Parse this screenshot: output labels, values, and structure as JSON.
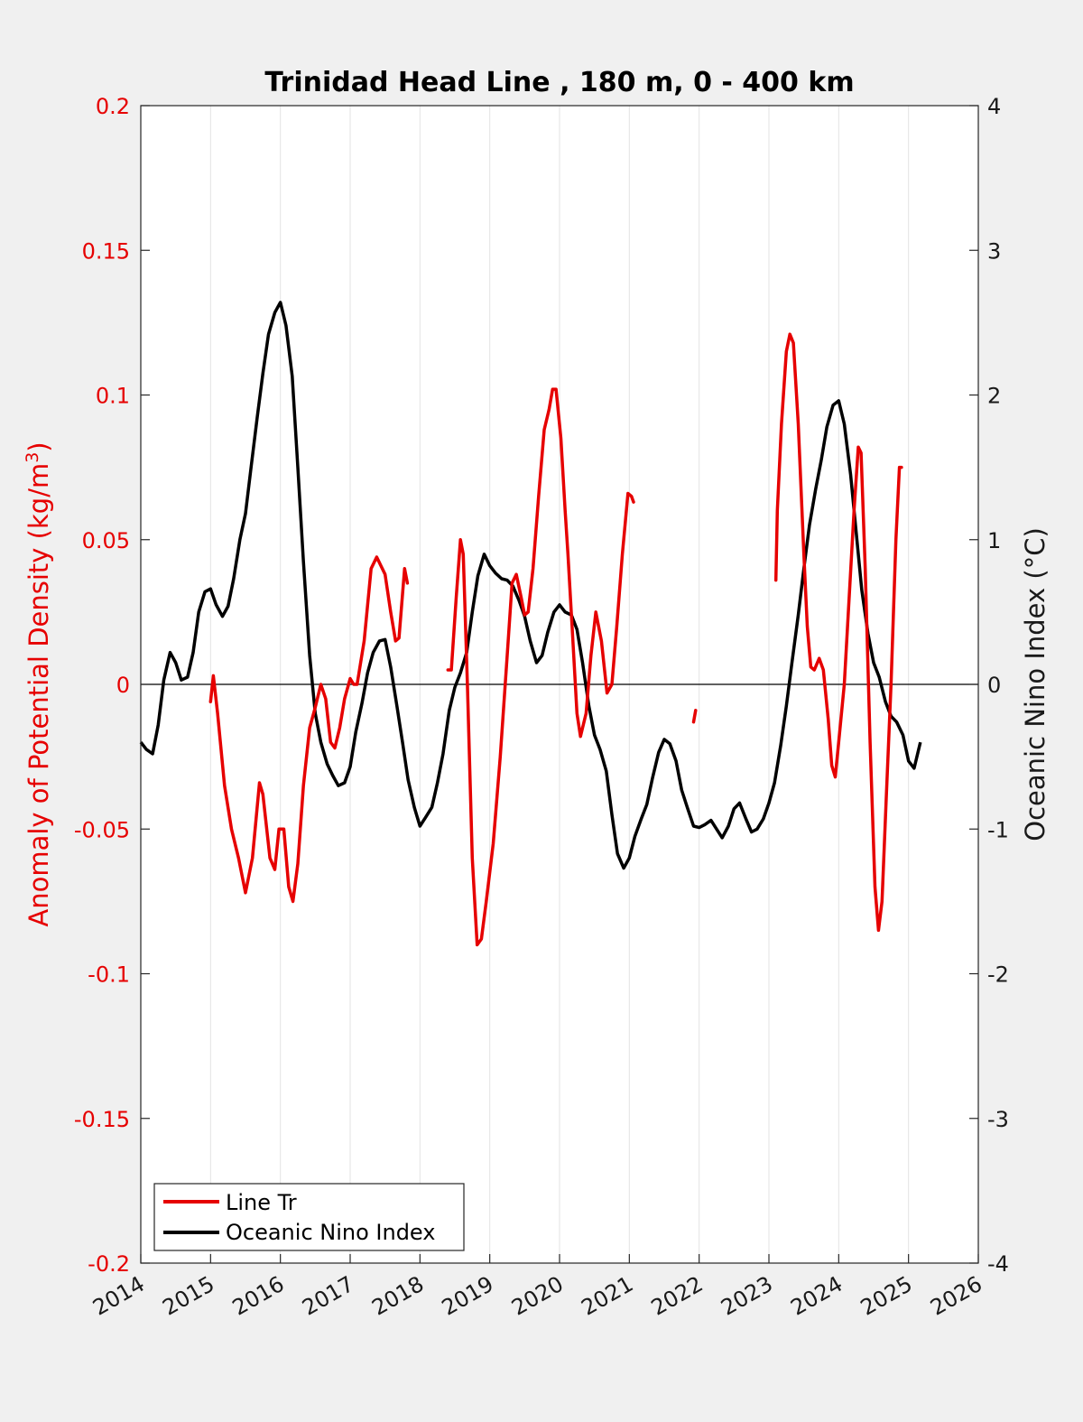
{
  "chart_data": {
    "type": "line",
    "title": "Trinidad Head Line , 180 m, 0 - 400 km",
    "ylabel_left": "Anomaly of Potential Density (kg/m",
    "ylabel_left_sup": "3",
    "ylabel_left_close": ")",
    "ylabel_right": "Oceanic Nino Index (°C)",
    "xlabel": "",
    "xlim": [
      2014,
      2026
    ],
    "ylim_left": [
      -0.2,
      0.2
    ],
    "ylim_right": [
      -4,
      4
    ],
    "x_ticks": [
      "2014",
      "2015",
      "2016",
      "2017",
      "2018",
      "2019",
      "2020",
      "2021",
      "2022",
      "2023",
      "2024",
      "2025",
      "2026"
    ],
    "y_left_ticks": [
      "0.2",
      "0.15",
      "0.1",
      "0.05",
      "0",
      "-0.05",
      "-0.1",
      "-0.15",
      "-0.2"
    ],
    "y_right_ticks": [
      "4",
      "3",
      "2",
      "1",
      "0",
      "-1",
      "-2",
      "-3",
      "-4"
    ],
    "grid": "vertical",
    "legend_position": "bottom-left",
    "colors": {
      "line_tr": "#e60000",
      "oni": "#000000"
    },
    "series": [
      {
        "name": "Line Tr",
        "axis": "left",
        "segments": [
          [
            [
              2015.0,
              -0.006
            ],
            [
              2015.04,
              0.003
            ],
            [
              2015.1,
              -0.01
            ],
            [
              2015.2,
              -0.035
            ],
            [
              2015.3,
              -0.05
            ],
            [
              2015.4,
              -0.06
            ],
            [
              2015.5,
              -0.072
            ],
            [
              2015.6,
              -0.06
            ],
            [
              2015.7,
              -0.034
            ],
            [
              2015.75,
              -0.038
            ],
            [
              2015.85,
              -0.06
            ],
            [
              2015.92,
              -0.064
            ],
            [
              2015.98,
              -0.05
            ],
            [
              2016.05,
              -0.05
            ],
            [
              2016.12,
              -0.07
            ],
            [
              2016.18,
              -0.075
            ],
            [
              2016.25,
              -0.062
            ],
            [
              2016.33,
              -0.035
            ],
            [
              2016.42,
              -0.015
            ],
            [
              2016.5,
              -0.008
            ],
            [
              2016.58,
              0.0
            ],
            [
              2016.65,
              -0.005
            ],
            [
              2016.72,
              -0.02
            ],
            [
              2016.78,
              -0.022
            ],
            [
              2016.85,
              -0.015
            ],
            [
              2016.92,
              -0.005
            ],
            [
              2017.0,
              0.002
            ],
            [
              2017.05,
              0.0
            ],
            [
              2017.1,
              0.0
            ],
            [
              2017.2,
              0.015
            ],
            [
              2017.3,
              0.04
            ],
            [
              2017.38,
              0.044
            ],
            [
              2017.5,
              0.038
            ],
            [
              2017.58,
              0.025
            ],
            [
              2017.65,
              0.015
            ],
            [
              2017.7,
              0.016
            ],
            [
              2017.78,
              0.04
            ],
            [
              2017.82,
              0.035
            ]
          ],
          [
            [
              2018.4,
              0.005
            ],
            [
              2018.45,
              0.005
            ],
            [
              2018.52,
              0.03
            ],
            [
              2018.58,
              0.05
            ],
            [
              2018.62,
              0.045
            ],
            [
              2018.68,
              0.0
            ],
            [
              2018.75,
              -0.06
            ],
            [
              2018.82,
              -0.09
            ],
            [
              2018.88,
              -0.088
            ],
            [
              2018.95,
              -0.075
            ],
            [
              2019.05,
              -0.055
            ],
            [
              2019.15,
              -0.025
            ],
            [
              2019.25,
              0.01
            ],
            [
              2019.32,
              0.035
            ],
            [
              2019.38,
              0.038
            ],
            [
              2019.45,
              0.03
            ],
            [
              2019.5,
              0.024
            ],
            [
              2019.55,
              0.025
            ],
            [
              2019.62,
              0.04
            ],
            [
              2019.7,
              0.065
            ],
            [
              2019.78,
              0.088
            ],
            [
              2019.85,
              0.095
            ],
            [
              2019.9,
              0.102
            ],
            [
              2019.95,
              0.102
            ],
            [
              2020.02,
              0.085
            ],
            [
              2020.08,
              0.06
            ],
            [
              2020.12,
              0.045
            ],
            [
              2020.18,
              0.02
            ],
            [
              2020.25,
              -0.01
            ],
            [
              2020.3,
              -0.018
            ],
            [
              2020.38,
              -0.01
            ],
            [
              2020.45,
              0.01
            ],
            [
              2020.52,
              0.025
            ],
            [
              2020.6,
              0.015
            ],
            [
              2020.68,
              -0.003
            ],
            [
              2020.75,
              0.0
            ],
            [
              2020.82,
              0.02
            ],
            [
              2020.9,
              0.045
            ],
            [
              2020.98,
              0.066
            ],
            [
              2021.03,
              0.065
            ],
            [
              2021.06,
              0.063
            ]
          ],
          [
            [
              2021.92,
              -0.013
            ],
            [
              2021.95,
              -0.009
            ]
          ],
          [
            [
              2023.1,
              0.036
            ],
            [
              2023.12,
              0.06
            ],
            [
              2023.18,
              0.09
            ],
            [
              2023.25,
              0.115
            ],
            [
              2023.3,
              0.121
            ],
            [
              2023.35,
              0.118
            ],
            [
              2023.42,
              0.09
            ],
            [
              2023.5,
              0.045
            ],
            [
              2023.55,
              0.02
            ],
            [
              2023.6,
              0.006
            ],
            [
              2023.65,
              0.005
            ],
            [
              2023.72,
              0.009
            ],
            [
              2023.78,
              0.005
            ],
            [
              2023.85,
              -0.012
            ],
            [
              2023.9,
              -0.028
            ],
            [
              2023.95,
              -0.032
            ],
            [
              2024.0,
              -0.02
            ],
            [
              2024.08,
              0.0
            ],
            [
              2024.15,
              0.03
            ],
            [
              2024.22,
              0.06
            ],
            [
              2024.28,
              0.082
            ],
            [
              2024.32,
              0.08
            ],
            [
              2024.38,
              0.04
            ],
            [
              2024.45,
              -0.02
            ],
            [
              2024.52,
              -0.07
            ],
            [
              2024.57,
              -0.085
            ],
            [
              2024.62,
              -0.075
            ],
            [
              2024.68,
              -0.04
            ],
            [
              2024.75,
              0.0
            ],
            [
              2024.82,
              0.05
            ],
            [
              2024.87,
              0.075
            ],
            [
              2024.9,
              0.075
            ]
          ]
        ]
      },
      {
        "name": "Oceanic Nino Index",
        "axis": "right",
        "points": [
          [
            2014.0,
            -0.4
          ],
          [
            2014.08,
            -0.45
          ],
          [
            2014.17,
            -0.48
          ],
          [
            2014.25,
            -0.28
          ],
          [
            2014.33,
            0.03
          ],
          [
            2014.42,
            0.22
          ],
          [
            2014.5,
            0.15
          ],
          [
            2014.58,
            0.03
          ],
          [
            2014.67,
            0.05
          ],
          [
            2014.75,
            0.22
          ],
          [
            2014.83,
            0.5
          ],
          [
            2014.92,
            0.64
          ],
          [
            2015.0,
            0.66
          ],
          [
            2015.08,
            0.55
          ],
          [
            2015.17,
            0.47
          ],
          [
            2015.25,
            0.54
          ],
          [
            2015.33,
            0.73
          ],
          [
            2015.42,
            1.0
          ],
          [
            2015.5,
            1.18
          ],
          [
            2015.58,
            1.5
          ],
          [
            2015.67,
            1.85
          ],
          [
            2015.75,
            2.15
          ],
          [
            2015.83,
            2.42
          ],
          [
            2015.92,
            2.57
          ],
          [
            2016.0,
            2.64
          ],
          [
            2016.08,
            2.48
          ],
          [
            2016.17,
            2.13
          ],
          [
            2016.25,
            1.5
          ],
          [
            2016.33,
            0.85
          ],
          [
            2016.42,
            0.2
          ],
          [
            2016.5,
            -0.2
          ],
          [
            2016.58,
            -0.4
          ],
          [
            2016.67,
            -0.55
          ],
          [
            2016.75,
            -0.63
          ],
          [
            2016.83,
            -0.7
          ],
          [
            2016.92,
            -0.68
          ],
          [
            2017.0,
            -0.57
          ],
          [
            2017.08,
            -0.33
          ],
          [
            2017.17,
            -0.13
          ],
          [
            2017.25,
            0.08
          ],
          [
            2017.33,
            0.22
          ],
          [
            2017.42,
            0.3
          ],
          [
            2017.5,
            0.31
          ],
          [
            2017.58,
            0.12
          ],
          [
            2017.67,
            -0.15
          ],
          [
            2017.75,
            -0.4
          ],
          [
            2017.83,
            -0.66
          ],
          [
            2017.92,
            -0.85
          ],
          [
            2018.0,
            -0.98
          ],
          [
            2018.08,
            -0.92
          ],
          [
            2018.17,
            -0.85
          ],
          [
            2018.25,
            -0.68
          ],
          [
            2018.33,
            -0.48
          ],
          [
            2018.42,
            -0.18
          ],
          [
            2018.5,
            -0.02
          ],
          [
            2018.58,
            0.08
          ],
          [
            2018.67,
            0.22
          ],
          [
            2018.75,
            0.5
          ],
          [
            2018.83,
            0.75
          ],
          [
            2018.92,
            0.9
          ],
          [
            2019.0,
            0.82
          ],
          [
            2019.08,
            0.77
          ],
          [
            2019.17,
            0.73
          ],
          [
            2019.25,
            0.72
          ],
          [
            2019.33,
            0.68
          ],
          [
            2019.42,
            0.58
          ],
          [
            2019.5,
            0.47
          ],
          [
            2019.58,
            0.3
          ],
          [
            2019.67,
            0.15
          ],
          [
            2019.75,
            0.2
          ],
          [
            2019.83,
            0.36
          ],
          [
            2019.92,
            0.5
          ],
          [
            2020.0,
            0.55
          ],
          [
            2020.08,
            0.5
          ],
          [
            2020.17,
            0.48
          ],
          [
            2020.25,
            0.38
          ],
          [
            2020.33,
            0.15
          ],
          [
            2020.42,
            -0.15
          ],
          [
            2020.5,
            -0.35
          ],
          [
            2020.58,
            -0.45
          ],
          [
            2020.67,
            -0.6
          ],
          [
            2020.75,
            -0.9
          ],
          [
            2020.83,
            -1.17
          ],
          [
            2020.92,
            -1.27
          ],
          [
            2021.0,
            -1.2
          ],
          [
            2021.08,
            -1.05
          ],
          [
            2021.17,
            -0.93
          ],
          [
            2021.25,
            -0.83
          ],
          [
            2021.33,
            -0.65
          ],
          [
            2021.42,
            -0.47
          ],
          [
            2021.5,
            -0.38
          ],
          [
            2021.58,
            -0.41
          ],
          [
            2021.67,
            -0.53
          ],
          [
            2021.75,
            -0.73
          ],
          [
            2021.83,
            -0.85
          ],
          [
            2021.92,
            -0.98
          ],
          [
            2022.0,
            -0.99
          ],
          [
            2022.08,
            -0.97
          ],
          [
            2022.17,
            -0.94
          ],
          [
            2022.25,
            -1.0
          ],
          [
            2022.33,
            -1.06
          ],
          [
            2022.42,
            -0.98
          ],
          [
            2022.5,
            -0.86
          ],
          [
            2022.58,
            -0.82
          ],
          [
            2022.67,
            -0.93
          ],
          [
            2022.75,
            -1.02
          ],
          [
            2022.83,
            -1.0
          ],
          [
            2022.92,
            -0.93
          ],
          [
            2023.0,
            -0.82
          ],
          [
            2023.08,
            -0.68
          ],
          [
            2023.17,
            -0.42
          ],
          [
            2023.25,
            -0.15
          ],
          [
            2023.33,
            0.15
          ],
          [
            2023.42,
            0.48
          ],
          [
            2023.5,
            0.8
          ],
          [
            2023.58,
            1.1
          ],
          [
            2023.67,
            1.35
          ],
          [
            2023.75,
            1.55
          ],
          [
            2023.83,
            1.78
          ],
          [
            2023.92,
            1.93
          ],
          [
            2024.0,
            1.96
          ],
          [
            2024.08,
            1.8
          ],
          [
            2024.17,
            1.45
          ],
          [
            2024.25,
            1.05
          ],
          [
            2024.33,
            0.65
          ],
          [
            2024.42,
            0.35
          ],
          [
            2024.5,
            0.15
          ],
          [
            2024.58,
            0.05
          ],
          [
            2024.67,
            -0.12
          ],
          [
            2024.75,
            -0.22
          ],
          [
            2024.83,
            -0.26
          ],
          [
            2024.92,
            -0.35
          ],
          [
            2025.0,
            -0.53
          ],
          [
            2025.08,
            -0.58
          ],
          [
            2025.17,
            -0.4
          ]
        ]
      }
    ]
  }
}
